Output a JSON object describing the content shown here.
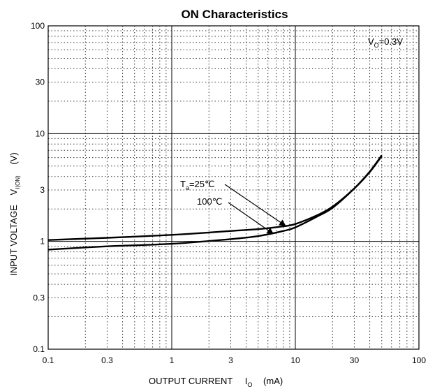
{
  "chart_data": {
    "type": "line",
    "title": "ON Characteristics",
    "xlabel": {
      "main": "OUTPUT CURRENT",
      "sym": "I",
      "sub": "O",
      "unit": "(mA)"
    },
    "ylabel": {
      "main": "INPUT VOLTAGE",
      "sym": "V",
      "sub": "I(ON)",
      "unit": "(V)"
    },
    "x_scale": "log",
    "y_scale": "log",
    "xlim": [
      0.1,
      100
    ],
    "ylim": [
      0.1,
      100
    ],
    "x_ticks": [
      0.1,
      0.3,
      1,
      3,
      10,
      30,
      100
    ],
    "x_tick_labels": [
      "0.1",
      "0.3",
      "1",
      "3",
      "10",
      "30",
      "100"
    ],
    "y_ticks": [
      0.1,
      0.3,
      1,
      3,
      10,
      30,
      100
    ],
    "y_tick_labels": [
      "0.1",
      "0.3",
      "1",
      "3",
      "10",
      "30",
      "100"
    ],
    "grid": "major solid, minor dotted",
    "condition": {
      "sym": "V",
      "sub": "O",
      "rest": "=0.3V"
    },
    "series": [
      {
        "name": "Ta=25℃",
        "label": {
          "sym": "T",
          "sub": "a",
          "rest": "=25℃"
        },
        "x": [
          0.1,
          0.3,
          1,
          3,
          5,
          8,
          10,
          15,
          20,
          30,
          40,
          50
        ],
        "y": [
          1.03,
          1.08,
          1.15,
          1.25,
          1.3,
          1.38,
          1.45,
          1.75,
          2.1,
          3.1,
          4.4,
          6.2
        ]
      },
      {
        "name": "100℃",
        "label": {
          "sym": "",
          "sub": "",
          "rest": "100℃"
        },
        "x": [
          0.1,
          0.3,
          1,
          3,
          5,
          8,
          10,
          15,
          20,
          30,
          40,
          50
        ],
        "y": [
          0.84,
          0.9,
          0.95,
          1.05,
          1.12,
          1.25,
          1.35,
          1.7,
          2.05,
          3.1,
          4.45,
          6.3
        ]
      }
    ]
  }
}
